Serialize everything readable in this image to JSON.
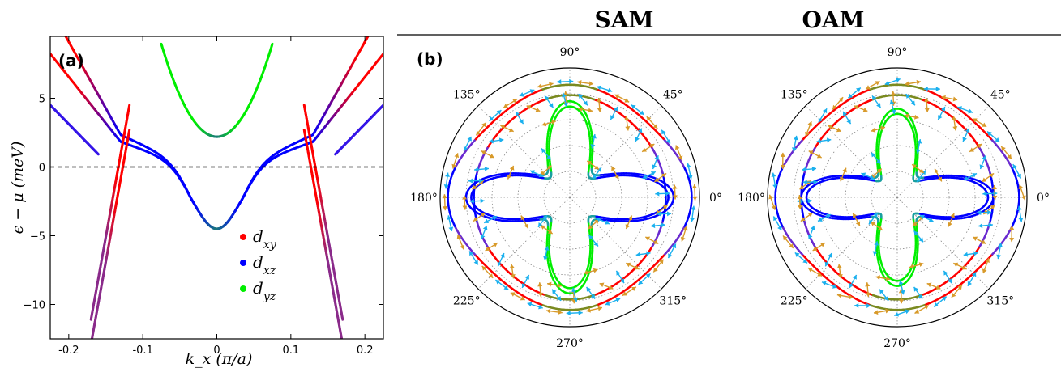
{
  "chart_data": [
    {
      "type": "line",
      "panel_label": "(a)",
      "xlabel": "k_x (π/a)",
      "ylabel": "ϵ − μ (meV)",
      "xlim": [
        -0.225,
        0.225
      ],
      "ylim": [
        -12.5,
        9.5
      ],
      "x_ticks": [
        "-0.2",
        "-0.1",
        "0",
        "0.1",
        "0.2"
      ],
      "x_tick_values": [
        -0.2,
        -0.1,
        0,
        0.1,
        0.2
      ],
      "y_ticks": [
        "5",
        "0",
        "−5",
        "−10"
      ],
      "y_tick_values": [
        5,
        0,
        -5,
        -10
      ],
      "reference_line": {
        "y": 0,
        "style": "dashed"
      },
      "legend": [
        {
          "label": "d_xy",
          "color": "#ff0000"
        },
        {
          "label": "d_xz",
          "color": "#0000ff"
        },
        {
          "label": "d_yz",
          "color": "#00ee00"
        }
      ],
      "legend_placement": "lower-right",
      "bands": {
        "dyz_minimum": 2.2,
        "xz_yz_minimum": -4.5,
        "dxy_crossings": [
          -0.13,
          0.13
        ],
        "fermi_crossings": [
          -0.148,
          -0.135,
          -0.11,
          -0.09,
          0.09,
          0.11,
          0.135,
          0.148
        ]
      }
    },
    {
      "type": "polar",
      "panel_label": "(b)",
      "panels": [
        {
          "title": "SAM"
        },
        {
          "title": "OAM"
        }
      ],
      "angle_labels": [
        "0°",
        "45°",
        "90°",
        "135°",
        "180°",
        "225°",
        "270°",
        "315°"
      ],
      "arrow_colors": {
        "spin_up_like": "#1ab0ee",
        "spin_down_like": "#d89a2a"
      },
      "orbital_colors": {
        "dxy": "#ff0000",
        "dxz": "#0000ff",
        "dyz": "#00ee00"
      }
    }
  ]
}
